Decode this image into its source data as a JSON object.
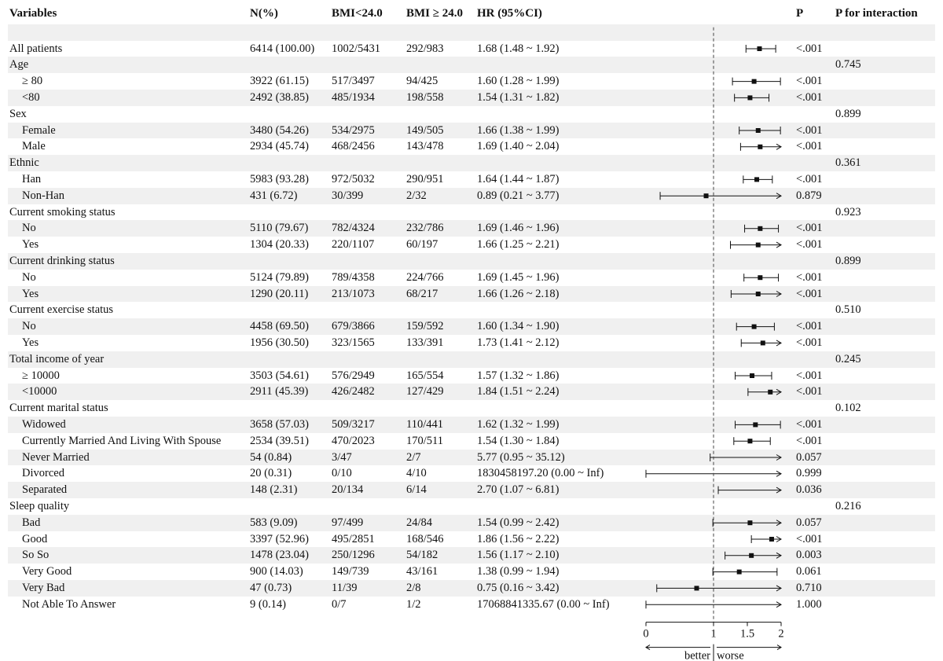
{
  "headers": {
    "variables": "Variables",
    "n": "N(%)",
    "bmi_low": "BMI<24.0",
    "bmi_high": "BMI ≥ 24.0",
    "hr": "HR (95%CI)",
    "p": "P",
    "p_interaction": "P for interaction"
  },
  "chart_data": {
    "type": "forest",
    "title": "",
    "x_axis": {
      "ticks": [
        0,
        1,
        1.5,
        2
      ],
      "tick_labels": [
        "0",
        "1",
        "1.5",
        "2"
      ],
      "range": [
        0,
        2
      ],
      "reference_line": 1,
      "left_label": "better",
      "right_label": "worse"
    },
    "rows": [
      {
        "label": "All patients",
        "indent": false,
        "header": false,
        "n": "6414 (100.00)",
        "bmi_low": "1002/5431",
        "bmi_high": "292/983",
        "hr_text": "1.68 (1.48 ~ 1.92)",
        "p": "<.001",
        "p_interaction": "",
        "hr": 1.68,
        "lo": 1.48,
        "hi": 1.92
      },
      {
        "label": "Age",
        "indent": false,
        "header": true,
        "p_interaction": "0.745"
      },
      {
        "label": "≥ 80",
        "indent": true,
        "header": false,
        "n": "3922 (61.15)",
        "bmi_low": "517/3497",
        "bmi_high": "94/425",
        "hr_text": "1.60 (1.28 ~ 1.99)",
        "p": "<.001",
        "p_interaction": "",
        "hr": 1.6,
        "lo": 1.28,
        "hi": 1.99
      },
      {
        "label": "<80",
        "indent": true,
        "header": false,
        "n": "2492 (38.85)",
        "bmi_low": "485/1934",
        "bmi_high": "198/558",
        "hr_text": "1.54 (1.31 ~ 1.82)",
        "p": "<.001",
        "p_interaction": "",
        "hr": 1.54,
        "lo": 1.31,
        "hi": 1.82
      },
      {
        "label": "Sex",
        "indent": false,
        "header": true,
        "p_interaction": "0.899"
      },
      {
        "label": "Female",
        "indent": true,
        "header": false,
        "n": "3480 (54.26)",
        "bmi_low": "534/2975",
        "bmi_high": "149/505",
        "hr_text": "1.66 (1.38 ~ 1.99)",
        "p": "<.001",
        "p_interaction": "",
        "hr": 1.66,
        "lo": 1.38,
        "hi": 1.99
      },
      {
        "label": "Male",
        "indent": true,
        "header": false,
        "n": "2934 (45.74)",
        "bmi_low": "468/2456",
        "bmi_high": "143/478",
        "hr_text": "1.69 (1.40 ~ 2.04)",
        "p": "<.001",
        "p_interaction": "",
        "hr": 1.69,
        "lo": 1.4,
        "hi": 2.04
      },
      {
        "label": "Ethnic",
        "indent": false,
        "header": true,
        "p_interaction": "0.361"
      },
      {
        "label": "Han",
        "indent": true,
        "header": false,
        "n": "5983 (93.28)",
        "bmi_low": "972/5032",
        "bmi_high": "290/951",
        "hr_text": "1.64 (1.44 ~ 1.87)",
        "p": "<.001",
        "p_interaction": "",
        "hr": 1.64,
        "lo": 1.44,
        "hi": 1.87
      },
      {
        "label": "Non-Han",
        "indent": true,
        "header": false,
        "n": "431 (6.72)",
        "bmi_low": "30/399",
        "bmi_high": "2/32",
        "hr_text": "0.89 (0.21 ~ 3.77)",
        "p": "0.879",
        "p_interaction": "",
        "hr": 0.89,
        "lo": 0.21,
        "hi": 3.77
      },
      {
        "label": "Current smoking status",
        "indent": false,
        "header": true,
        "p_interaction": "0.923"
      },
      {
        "label": "No",
        "indent": true,
        "header": false,
        "n": "5110 (79.67)",
        "bmi_low": "782/4324",
        "bmi_high": "232/786",
        "hr_text": "1.69 (1.46 ~ 1.96)",
        "p": "<.001",
        "p_interaction": "",
        "hr": 1.69,
        "lo": 1.46,
        "hi": 1.96
      },
      {
        "label": "Yes",
        "indent": true,
        "header": false,
        "n": "1304 (20.33)",
        "bmi_low": "220/1107",
        "bmi_high": "60/197",
        "hr_text": "1.66 (1.25 ~ 2.21)",
        "p": "<.001",
        "p_interaction": "",
        "hr": 1.66,
        "lo": 1.25,
        "hi": 2.21
      },
      {
        "label": "Current drinking status",
        "indent": false,
        "header": true,
        "p_interaction": "0.899"
      },
      {
        "label": "No",
        "indent": true,
        "header": false,
        "n": "5124 (79.89)",
        "bmi_low": "789/4358",
        "bmi_high": "224/766",
        "hr_text": "1.69 (1.45 ~ 1.96)",
        "p": "<.001",
        "p_interaction": "",
        "hr": 1.69,
        "lo": 1.45,
        "hi": 1.96
      },
      {
        "label": "Yes",
        "indent": true,
        "header": false,
        "n": "1290 (20.11)",
        "bmi_low": "213/1073",
        "bmi_high": "68/217",
        "hr_text": "1.66 (1.26 ~ 2.18)",
        "p": "<.001",
        "p_interaction": "",
        "hr": 1.66,
        "lo": 1.26,
        "hi": 2.18
      },
      {
        "label": "Current exercise status",
        "indent": false,
        "header": true,
        "p_interaction": "0.510"
      },
      {
        "label": "No",
        "indent": true,
        "header": false,
        "n": "4458 (69.50)",
        "bmi_low": "679/3866",
        "bmi_high": "159/592",
        "hr_text": "1.60 (1.34 ~ 1.90)",
        "p": "<.001",
        "p_interaction": "",
        "hr": 1.6,
        "lo": 1.34,
        "hi": 1.9
      },
      {
        "label": "Yes",
        "indent": true,
        "header": false,
        "n": "1956 (30.50)",
        "bmi_low": "323/1565",
        "bmi_high": "133/391",
        "hr_text": "1.73 (1.41 ~ 2.12)",
        "p": "<.001",
        "p_interaction": "",
        "hr": 1.73,
        "lo": 1.41,
        "hi": 2.12
      },
      {
        "label": "Total income of year",
        "indent": false,
        "header": true,
        "p_interaction": "0.245"
      },
      {
        "label": "≥ 10000",
        "indent": true,
        "header": false,
        "n": "3503 (54.61)",
        "bmi_low": "576/2949",
        "bmi_high": "165/554",
        "hr_text": "1.57 (1.32 ~ 1.86)",
        "p": "<.001",
        "p_interaction": "",
        "hr": 1.57,
        "lo": 1.32,
        "hi": 1.86
      },
      {
        "label": "<10000",
        "indent": true,
        "header": false,
        "n": "2911 (45.39)",
        "bmi_low": "426/2482",
        "bmi_high": "127/429",
        "hr_text": "1.84 (1.51 ~ 2.24)",
        "p": "<.001",
        "p_interaction": "",
        "hr": 1.84,
        "lo": 1.51,
        "hi": 2.24
      },
      {
        "label": "Current marital status",
        "indent": false,
        "header": true,
        "p_interaction": "0.102"
      },
      {
        "label": "Widowed",
        "indent": true,
        "header": false,
        "n": "3658 (57.03)",
        "bmi_low": "509/3217",
        "bmi_high": "110/441",
        "hr_text": "1.62 (1.32 ~ 1.99)",
        "p": "<.001",
        "p_interaction": "",
        "hr": 1.62,
        "lo": 1.32,
        "hi": 1.99
      },
      {
        "label": "Currently Married And Living With Spouse",
        "indent": true,
        "header": false,
        "n": "2534 (39.51)",
        "bmi_low": "470/2023",
        "bmi_high": "170/511",
        "hr_text": "1.54 (1.30 ~ 1.84)",
        "p": "<.001",
        "p_interaction": "",
        "hr": 1.54,
        "lo": 1.3,
        "hi": 1.84
      },
      {
        "label": "Never Married",
        "indent": true,
        "header": false,
        "n": "54 (0.84)",
        "bmi_low": "3/47",
        "bmi_high": "2/7",
        "hr_text": "5.77 (0.95 ~ 35.12)",
        "p": "0.057",
        "p_interaction": "",
        "hr": 5.77,
        "lo": 0.95,
        "hi": 35.12
      },
      {
        "label": "Divorced",
        "indent": true,
        "header": false,
        "n": "20 (0.31)",
        "bmi_low": "0/10",
        "bmi_high": "4/10",
        "hr_text": "1830458197.20 (0.00 ~ Inf)",
        "p": "0.999",
        "p_interaction": "",
        "hr": 1830458197.2,
        "lo": 0.0,
        "hi": "Inf"
      },
      {
        "label": "Separated",
        "indent": true,
        "header": false,
        "n": "148 (2.31)",
        "bmi_low": "20/134",
        "bmi_high": "6/14",
        "hr_text": "2.70 (1.07 ~ 6.81)",
        "p": "0.036",
        "p_interaction": "",
        "hr": 2.7,
        "lo": 1.07,
        "hi": 6.81
      },
      {
        "label": "Sleep quality",
        "indent": false,
        "header": true,
        "p_interaction": "0.216"
      },
      {
        "label": "Bad",
        "indent": true,
        "header": false,
        "n": "583 (9.09)",
        "bmi_low": "97/499",
        "bmi_high": "24/84",
        "hr_text": "1.54 (0.99 ~ 2.42)",
        "p": "0.057",
        "p_interaction": "",
        "hr": 1.54,
        "lo": 0.99,
        "hi": 2.42
      },
      {
        "label": "Good",
        "indent": true,
        "header": false,
        "n": "3397 (52.96)",
        "bmi_low": "495/2851",
        "bmi_high": "168/546",
        "hr_text": "1.86 (1.56 ~ 2.22)",
        "p": "<.001",
        "p_interaction": "",
        "hr": 1.86,
        "lo": 1.56,
        "hi": 2.22
      },
      {
        "label": "So So",
        "indent": true,
        "header": false,
        "n": "1478 (23.04)",
        "bmi_low": "250/1296",
        "bmi_high": "54/182",
        "hr_text": "1.56 (1.17 ~ 2.10)",
        "p": "0.003",
        "p_interaction": "",
        "hr": 1.56,
        "lo": 1.17,
        "hi": 2.1
      },
      {
        "label": "Very Good",
        "indent": true,
        "header": false,
        "n": "900 (14.03)",
        "bmi_low": "149/739",
        "bmi_high": "43/161",
        "hr_text": "1.38 (0.99 ~ 1.94)",
        "p": "0.061",
        "p_interaction": "",
        "hr": 1.38,
        "lo": 0.99,
        "hi": 1.94
      },
      {
        "label": "Very Bad",
        "indent": true,
        "header": false,
        "n": "47 (0.73)",
        "bmi_low": "11/39",
        "bmi_high": "2/8",
        "hr_text": "0.75 (0.16 ~ 3.42)",
        "p": "0.710",
        "p_interaction": "",
        "hr": 0.75,
        "lo": 0.16,
        "hi": 3.42
      },
      {
        "label": "Not Able To Answer",
        "indent": true,
        "header": false,
        "n": "9 (0.14)",
        "bmi_low": "0/7",
        "bmi_high": "1/2",
        "hr_text": "17068841335.67 (0.00 ~ Inf)",
        "p": "1.000",
        "p_interaction": "",
        "hr": 17068841335.67,
        "lo": 0.0,
        "hi": "Inf"
      }
    ]
  }
}
